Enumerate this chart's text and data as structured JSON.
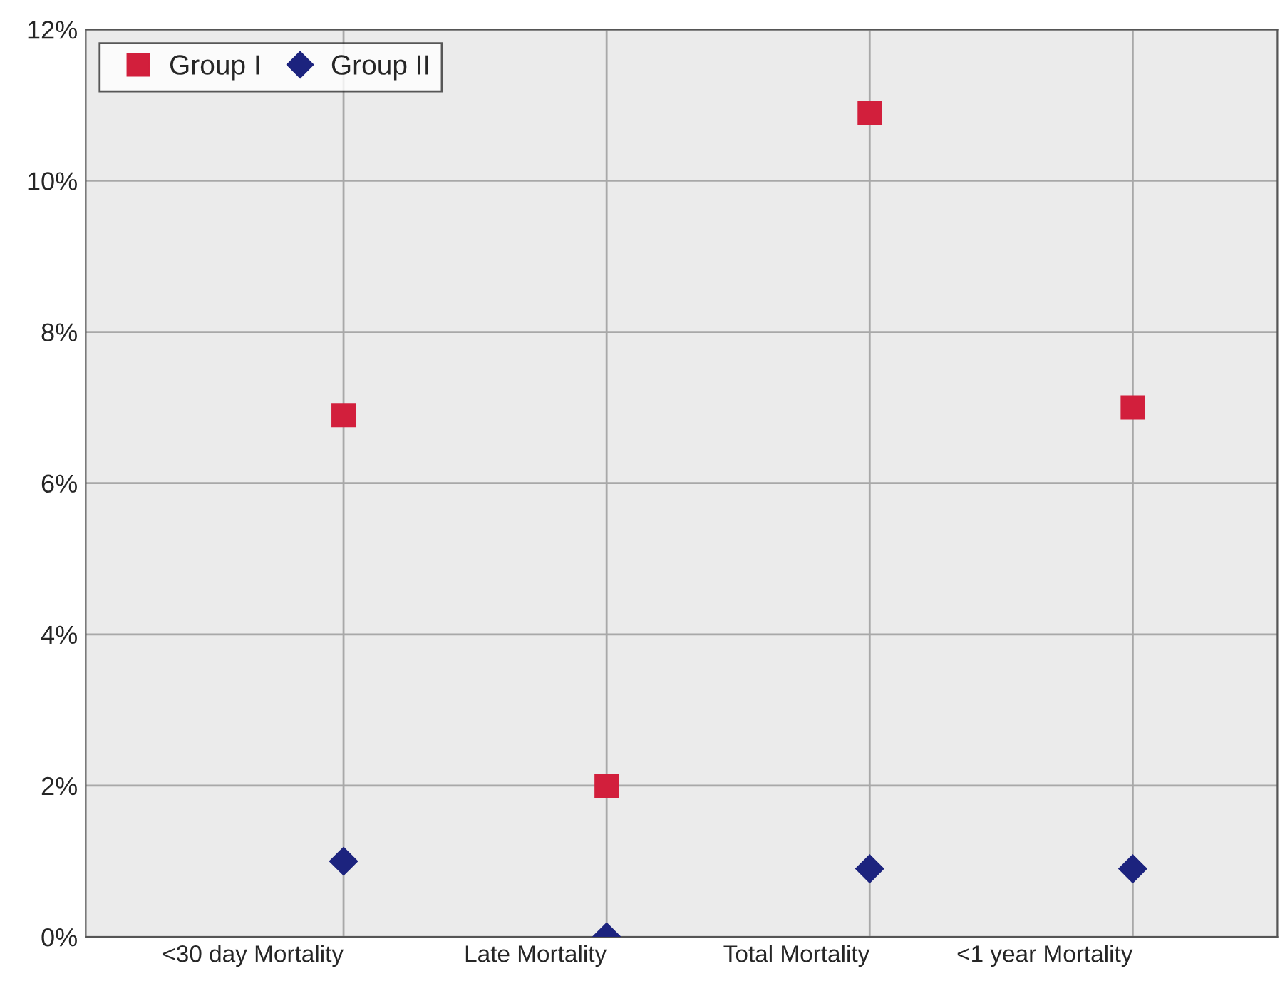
{
  "chart_data": {
    "type": "scatter",
    "categories": [
      "<30 day Mortality",
      "Late Mortality",
      "Total Mortality",
      "<1 year Mortality"
    ],
    "series": [
      {
        "name": "Group I",
        "color": "#d21f3c",
        "marker": "square",
        "values": [
          6.9,
          2.0,
          10.9,
          7.0
        ]
      },
      {
        "name": "Group II",
        "color": "#1c237e",
        "marker": "diamond",
        "values": [
          1.0,
          0.0,
          0.9,
          0.9
        ]
      }
    ],
    "ylim": [
      0,
      12
    ],
    "yticks": [
      {
        "value": 0,
        "label": "0%"
      },
      {
        "value": 2,
        "label": "2%"
      },
      {
        "value": 4,
        "label": "4%"
      },
      {
        "value": 6,
        "label": "6%"
      },
      {
        "value": 8,
        "label": "8%"
      },
      {
        "value": 10,
        "label": "10%"
      },
      {
        "value": 12,
        "label": "12%"
      }
    ],
    "grid": true,
    "legend": "top left"
  }
}
